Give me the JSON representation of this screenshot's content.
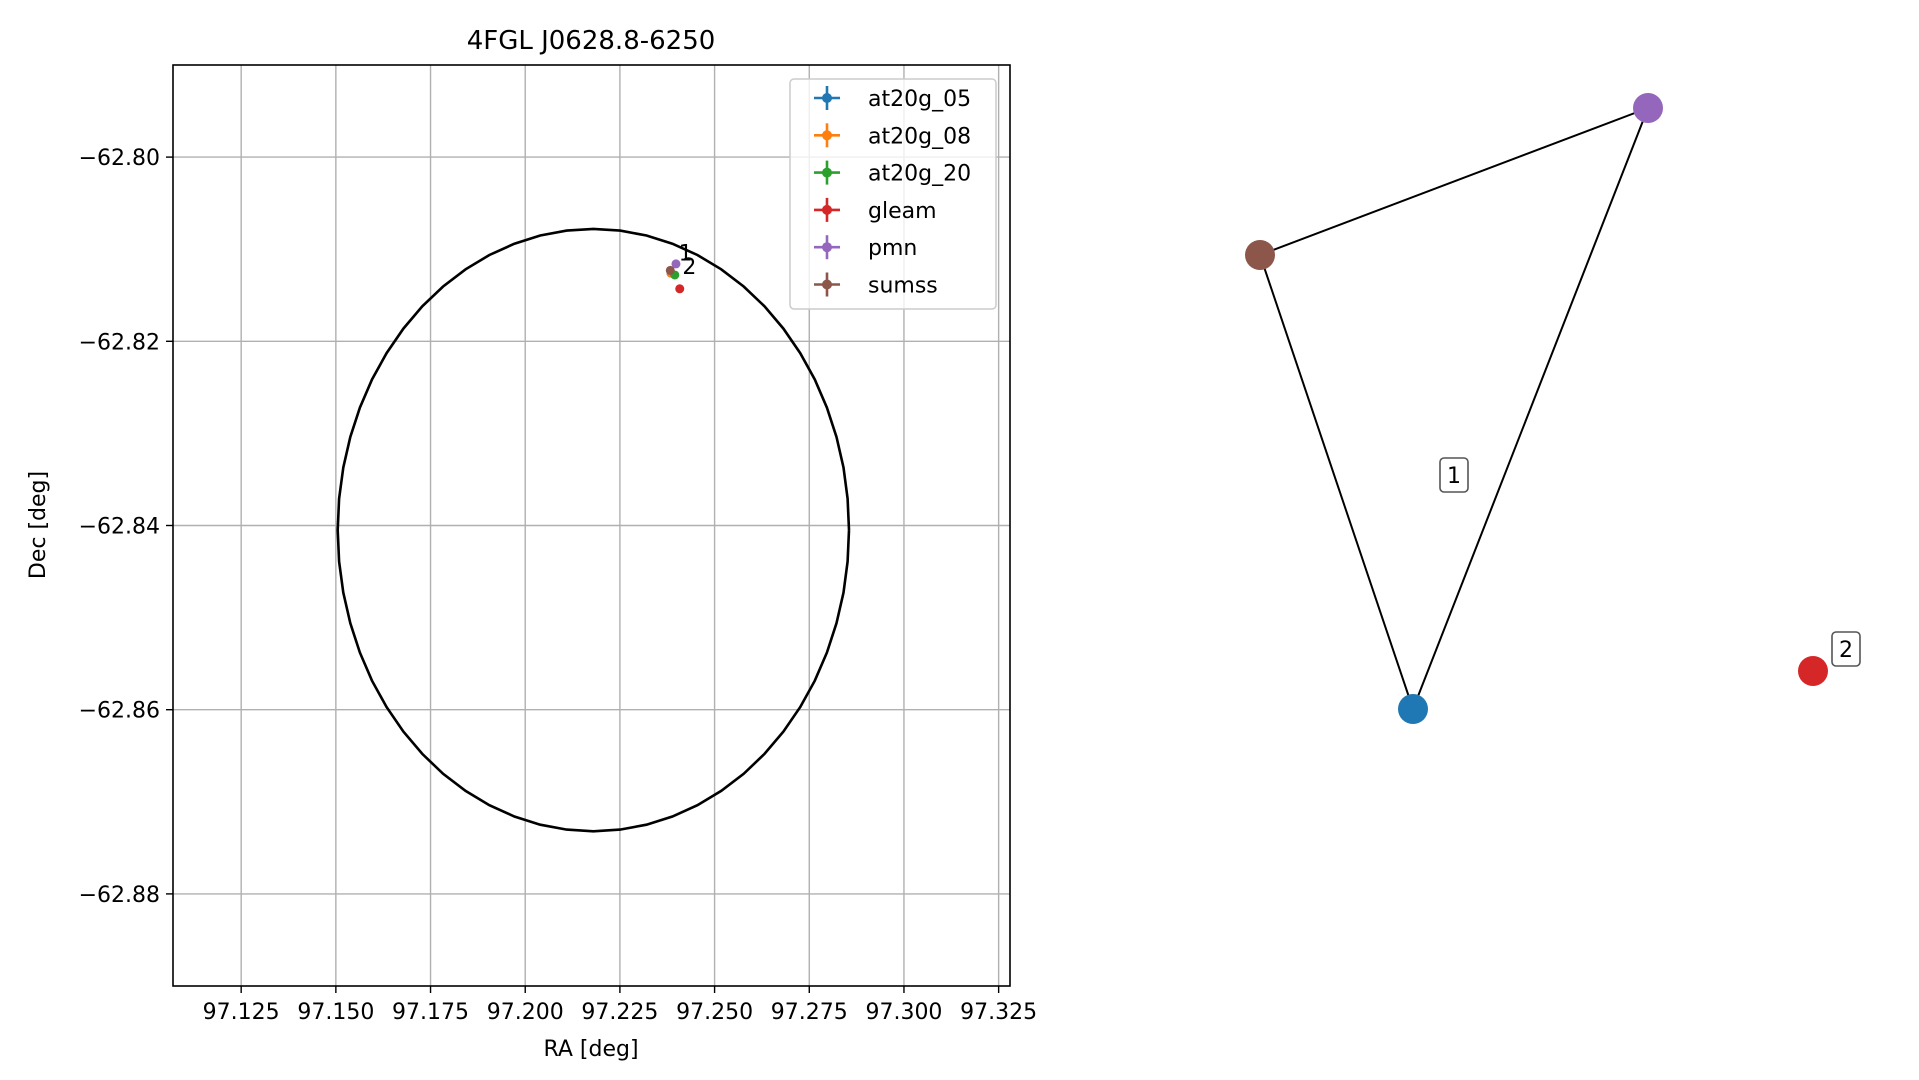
{
  "chart_data": [
    {
      "type": "scatter",
      "title": "4FGL J0628.8-6250",
      "xlabel": "RA [deg]",
      "ylabel": "Dec [deg]",
      "xlim": [
        97.107,
        97.328
      ],
      "ylim": [
        -62.89,
        -62.79
      ],
      "xticks": [
        97.125,
        97.15,
        97.175,
        97.2,
        97.225,
        97.25,
        97.275,
        97.3,
        97.325
      ],
      "xtick_labels": [
        "97.125",
        "97.150",
        "97.175",
        "97.200",
        "97.225",
        "97.250",
        "97.275",
        "97.300",
        "97.325"
      ],
      "yticks": [
        -62.8,
        -62.82,
        -62.84,
        -62.86,
        -62.88
      ],
      "ytick_labels": [
        "−62.80",
        "−62.82",
        "−62.84",
        "−62.86",
        "−62.88"
      ],
      "grid": true,
      "legend_position": "top-right",
      "series": [
        {
          "name": "at20g_05",
          "color": "#1f77b4",
          "x": [
            97.2385
          ],
          "y": [
            -62.8126
          ]
        },
        {
          "name": "at20g_08",
          "color": "#ff7f0e",
          "x": [
            97.2385
          ],
          "y": [
            -62.8126
          ]
        },
        {
          "name": "at20g_20",
          "color": "#2ca02c",
          "x": [
            97.2395
          ],
          "y": [
            -62.8128
          ]
        },
        {
          "name": "gleam",
          "color": "#d62728",
          "x": [
            97.2408
          ],
          "y": [
            -62.8143
          ]
        },
        {
          "name": "pmn",
          "color": "#9467bd",
          "x": [
            97.2398
          ],
          "y": [
            -62.8116
          ]
        },
        {
          "name": "sumss",
          "color": "#8c564b",
          "x": [
            97.2383
          ],
          "y": [
            -62.8123
          ]
        }
      ],
      "annotations": [
        {
          "text": "1",
          "x": 97.2405,
          "y": -62.8112
        },
        {
          "text": "2",
          "x": 97.2415,
          "y": -62.8127
        }
      ],
      "ellipse": {
        "ra_center": 97.218,
        "dec_center": -62.8405,
        "ra_halfwidth": 0.0675,
        "dec_halfwidth": 0.0327
      }
    },
    {
      "type": "network",
      "nodes": [
        {
          "id": "sumss",
          "color": "#8c564b"
        },
        {
          "id": "pmn",
          "color": "#9467bd"
        },
        {
          "id": "at20g_05",
          "color": "#1f77b4"
        },
        {
          "id": "gleam",
          "color": "#d62728"
        }
      ],
      "edges": [
        [
          "sumss",
          "pmn"
        ],
        [
          "sumss",
          "at20g_05"
        ],
        [
          "pmn",
          "at20g_05"
        ]
      ],
      "group_labels": [
        "1",
        "2"
      ]
    }
  ]
}
